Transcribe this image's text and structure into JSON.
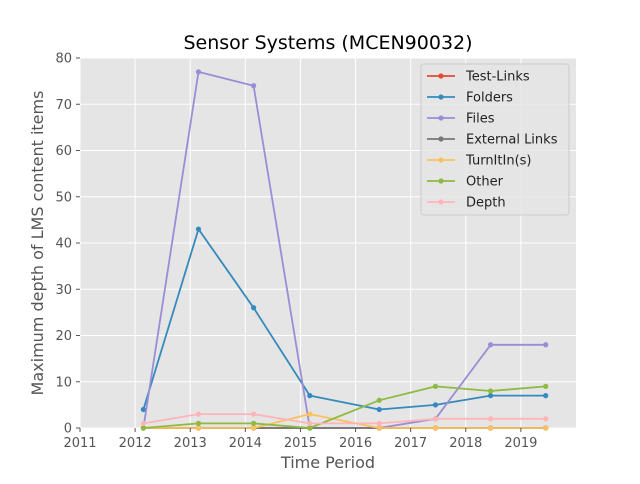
{
  "chart_data": {
    "type": "line",
    "title": "Sensor Systems (MCEN90032)",
    "xlabel": "Time Period",
    "ylabel": "Maximum depth of LMS content items",
    "xlim": [
      2011,
      2020
    ],
    "ylim": [
      0,
      80
    ],
    "xticks": [
      2011,
      2012,
      2013,
      2014,
      2015,
      2016,
      2017,
      2018,
      2019
    ],
    "yticks": [
      0,
      10,
      20,
      30,
      40,
      50,
      60,
      70,
      80
    ],
    "grid": true,
    "legend_position": "upper right",
    "x": [
      2012.15,
      2013.15,
      2014.15,
      2015.17,
      2016.43,
      2017.45,
      2018.45,
      2019.45
    ],
    "series": [
      {
        "name": "Test-Links",
        "color": "#E24A33",
        "values": [
          0,
          0,
          0,
          0,
          0,
          0,
          0,
          0
        ]
      },
      {
        "name": "Folders",
        "color": "#348ABD",
        "values": [
          4,
          43,
          26,
          7,
          4,
          5,
          7,
          7
        ]
      },
      {
        "name": "Files",
        "color": "#988ED5",
        "values": [
          0,
          77,
          74,
          0,
          0,
          2,
          18,
          18
        ]
      },
      {
        "name": "External Links",
        "color": "#777777",
        "values": [
          0,
          0,
          0,
          0,
          0,
          0,
          0,
          0
        ]
      },
      {
        "name": "TurnItIn(s)",
        "color": "#FBC15E",
        "values": [
          0,
          0,
          0,
          3,
          0,
          0,
          0,
          0
        ]
      },
      {
        "name": "Other",
        "color": "#8EBA42",
        "values": [
          0,
          1,
          1,
          0,
          6,
          9,
          8,
          9
        ]
      },
      {
        "name": "Depth",
        "color": "#FFB5B8",
        "values": [
          1,
          3,
          3,
          1,
          1,
          2,
          2,
          2
        ]
      }
    ]
  }
}
